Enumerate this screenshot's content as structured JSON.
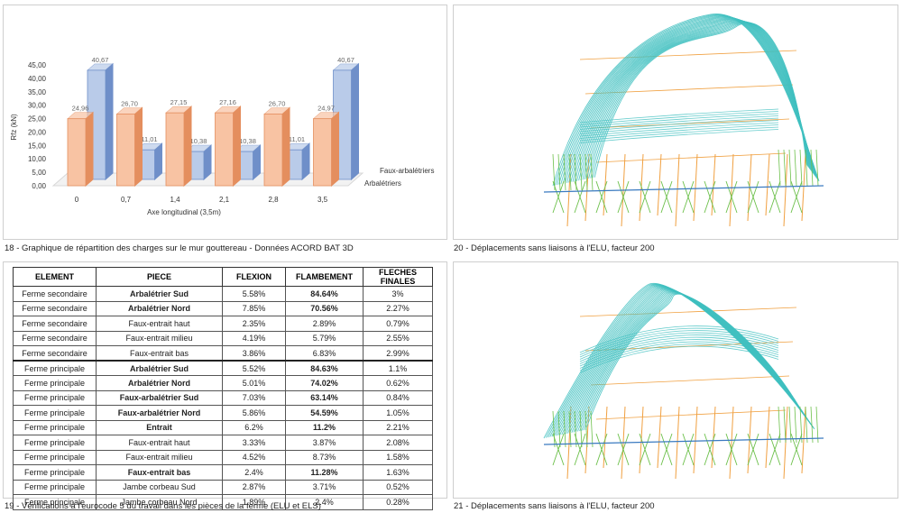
{
  "captions": {
    "c18": "18 - Graphique de répartition des charges sur le mur gouttereau - Données ACORD BAT 3D",
    "c19": "19 - Vérifications à l'eurocode 5 du travail dans les pièces de la ferme (ELU et ELS)",
    "c20": "20 - Déplacements sans liaisons à l'ELU, facteur 200",
    "c21": "21 - Déplacements sans liaisons à l'ELU, facteur 200"
  },
  "chart_data": {
    "type": "bar",
    "categories": [
      "0",
      "0,7",
      "1,4",
      "2,1",
      "2,8",
      "3,5"
    ],
    "series": [
      {
        "name": "Arbalétriers",
        "values": [
          24.96,
          26.7,
          27.15,
          27.16,
          26.7,
          24.97
        ],
        "labels": [
          "24,96",
          "26,70",
          "27,15",
          "27,16",
          "26,70",
          "24,97"
        ],
        "color": "#f4a77c"
      },
      {
        "name": "Faux-arbalétriers",
        "values": [
          40.67,
          11.01,
          10.38,
          10.38,
          11.01,
          40.67
        ],
        "labels": [
          "40,67",
          "11,01",
          "10,38",
          "10,38",
          "11,01",
          "40,67"
        ],
        "color": "#6f8fc9"
      }
    ],
    "ytick_labels": [
      "0,00",
      "5,00",
      "10,00",
      "15,00",
      "20,00",
      "25,00",
      "30,00",
      "35,00",
      "40,00",
      "45,00"
    ],
    "ylim": [
      0,
      45
    ],
    "ylabel": "Rfz (kN)",
    "xlabel": "Axe longitudinal (3,5m)",
    "legend": "right",
    "grid": false
  },
  "table": {
    "headers": [
      "ELEMENT",
      "PIECE",
      "FLEXION",
      "FLAMBEMENT",
      "FLECHES FINALES"
    ],
    "rows": [
      {
        "element": "Ferme secondaire",
        "piece": "Arbalétrier Sud",
        "flexion": "5.58%",
        "flambement": "84.64%",
        "fleches": "3%",
        "style": "red",
        "sep": false
      },
      {
        "element": "Ferme secondaire",
        "piece": "Arbalétrier Nord",
        "flexion": "7.85%",
        "flambement": "70.56%",
        "fleches": "2.27%",
        "style": "red",
        "sep": false
      },
      {
        "element": "Ferme secondaire",
        "piece": "Faux-entrait haut",
        "flexion": "2.35%",
        "flambement": "2.89%",
        "fleches": "0.79%",
        "style": "",
        "sep": false
      },
      {
        "element": "Ferme secondaire",
        "piece": "Faux-entrait milieu",
        "flexion": "4.19%",
        "flambement": "5.79%",
        "fleches": "2.55%",
        "style": "",
        "sep": false
      },
      {
        "element": "Ferme secondaire",
        "piece": "Faux-entrait bas",
        "flexion": "3.86%",
        "flambement": "6.83%",
        "fleches": "2.99%",
        "style": "",
        "sep": false
      },
      {
        "element": "Ferme principale",
        "piece": "Arbalétrier Sud",
        "flexion": "5.52%",
        "flambement": "84.63%",
        "fleches": "1.1%",
        "style": "red",
        "sep": true
      },
      {
        "element": "Ferme principale",
        "piece": "Arbalétrier Nord",
        "flexion": "5.01%",
        "flambement": "74.02%",
        "fleches": "0.62%",
        "style": "red",
        "sep": false
      },
      {
        "element": "Ferme principale",
        "piece": "Faux-arbalétrier Sud",
        "flexion": "7.03%",
        "flambement": "63.14%",
        "fleches": "0.84%",
        "style": "orange",
        "sep": false
      },
      {
        "element": "Ferme principale",
        "piece": "Faux-arbalétrier Nord",
        "flexion": "5.86%",
        "flambement": "54.59%",
        "fleches": "1.05%",
        "style": "orange",
        "sep": false
      },
      {
        "element": "Ferme principale",
        "piece": "Entrait",
        "flexion": "6.2%",
        "flambement": "11.2%",
        "fleches": "2.21%",
        "style": "orange",
        "sep": false
      },
      {
        "element": "Ferme principale",
        "piece": "Faux-entrait haut",
        "flexion": "3.33%",
        "flambement": "3.87%",
        "fleches": "2.08%",
        "style": "",
        "sep": false
      },
      {
        "element": "Ferme principale",
        "piece": "Faux-entrait milieu",
        "flexion": "4.52%",
        "flambement": "8.73%",
        "fleches": "1.58%",
        "style": "",
        "sep": false
      },
      {
        "element": "Ferme principale",
        "piece": "Faux-entrait bas",
        "flexion": "2.4%",
        "flambement": "11.28%",
        "fleches": "1.63%",
        "style": "orange",
        "sep": false
      },
      {
        "element": "Ferme principale",
        "piece": "Jambe corbeau Sud",
        "flexion": "2.87%",
        "flambement": "3.71%",
        "fleches": "0.52%",
        "style": "",
        "sep": false
      },
      {
        "element": "Ferme principale",
        "piece": "Jambe corbeau Nord",
        "flexion": "1.89%",
        "flambement": "2.4%",
        "fleches": "0.28%",
        "style": "",
        "sep": false
      }
    ]
  },
  "colors": {
    "beam_cyan": "#3fbfbf",
    "beam_orange": "#f0a040",
    "beam_green": "#6cc04a"
  }
}
